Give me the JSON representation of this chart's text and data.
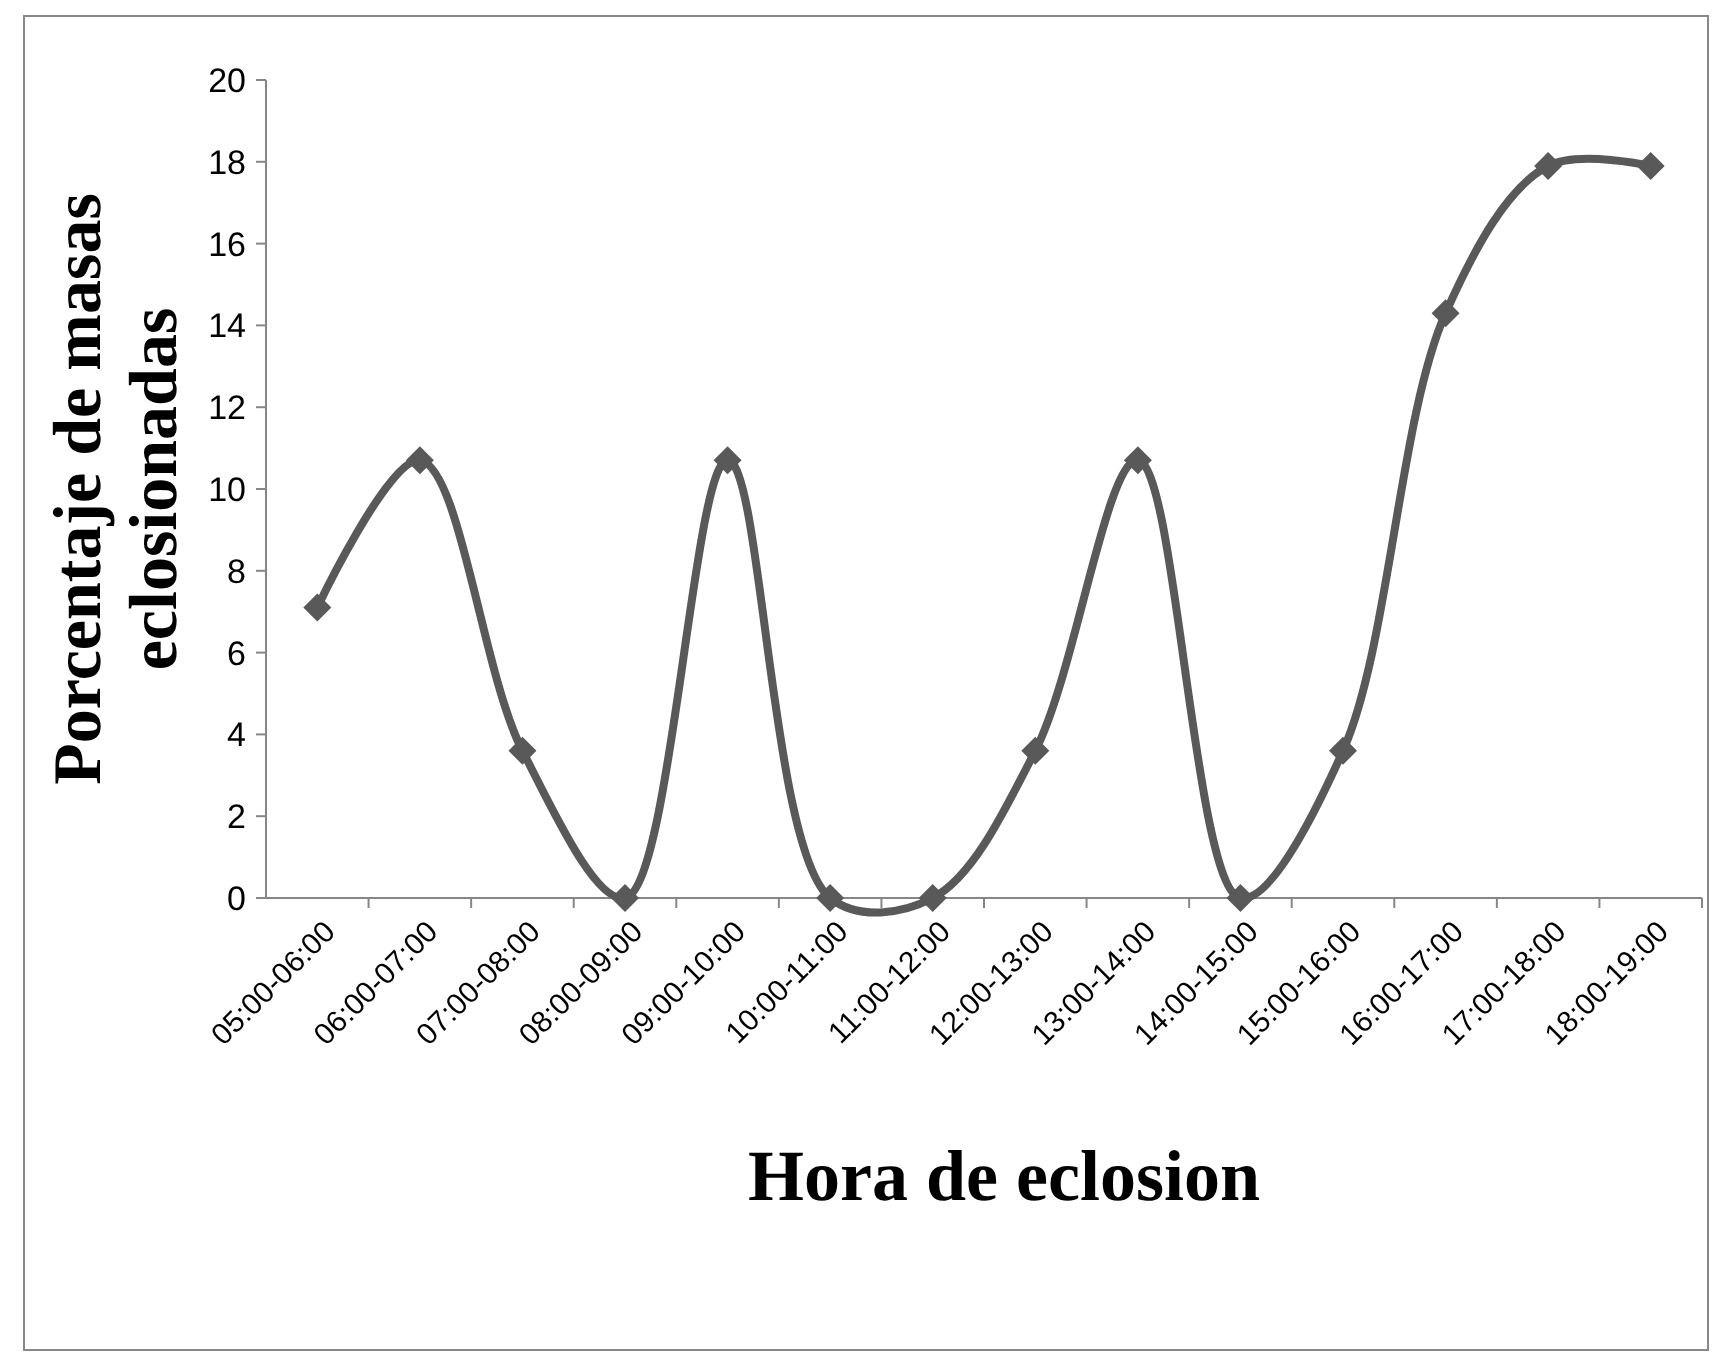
{
  "chart_data": {
    "type": "line",
    "xlabel": "Hora de eclosion",
    "ylabel": "Porcentaje de masas eclosionadas",
    "categories": [
      "05:00-06:00",
      "06:00-07:00",
      "07:00-08:00",
      "08:00-09:00",
      "09:00-10:00",
      "10:00-11:00",
      "11:00-12:00",
      "12:00-13:00",
      "13:00-14:00",
      "14:00-15:00",
      "15:00-16:00",
      "16:00-17:00",
      "17:00-18:00",
      "18:00-19:00"
    ],
    "series": [
      {
        "color": "#595959",
        "values": [
          7.1,
          10.7,
          3.6,
          0,
          10.7,
          0,
          0,
          3.6,
          10.7,
          0,
          3.6,
          14.3,
          17.9,
          17.9
        ]
      }
    ],
    "ylim": [
      0,
      20
    ],
    "yticks": [
      0,
      2,
      4,
      6,
      8,
      10,
      12,
      14,
      16,
      18,
      20
    ],
    "grid": false,
    "marker": "diamond",
    "line_style": "solid"
  }
}
